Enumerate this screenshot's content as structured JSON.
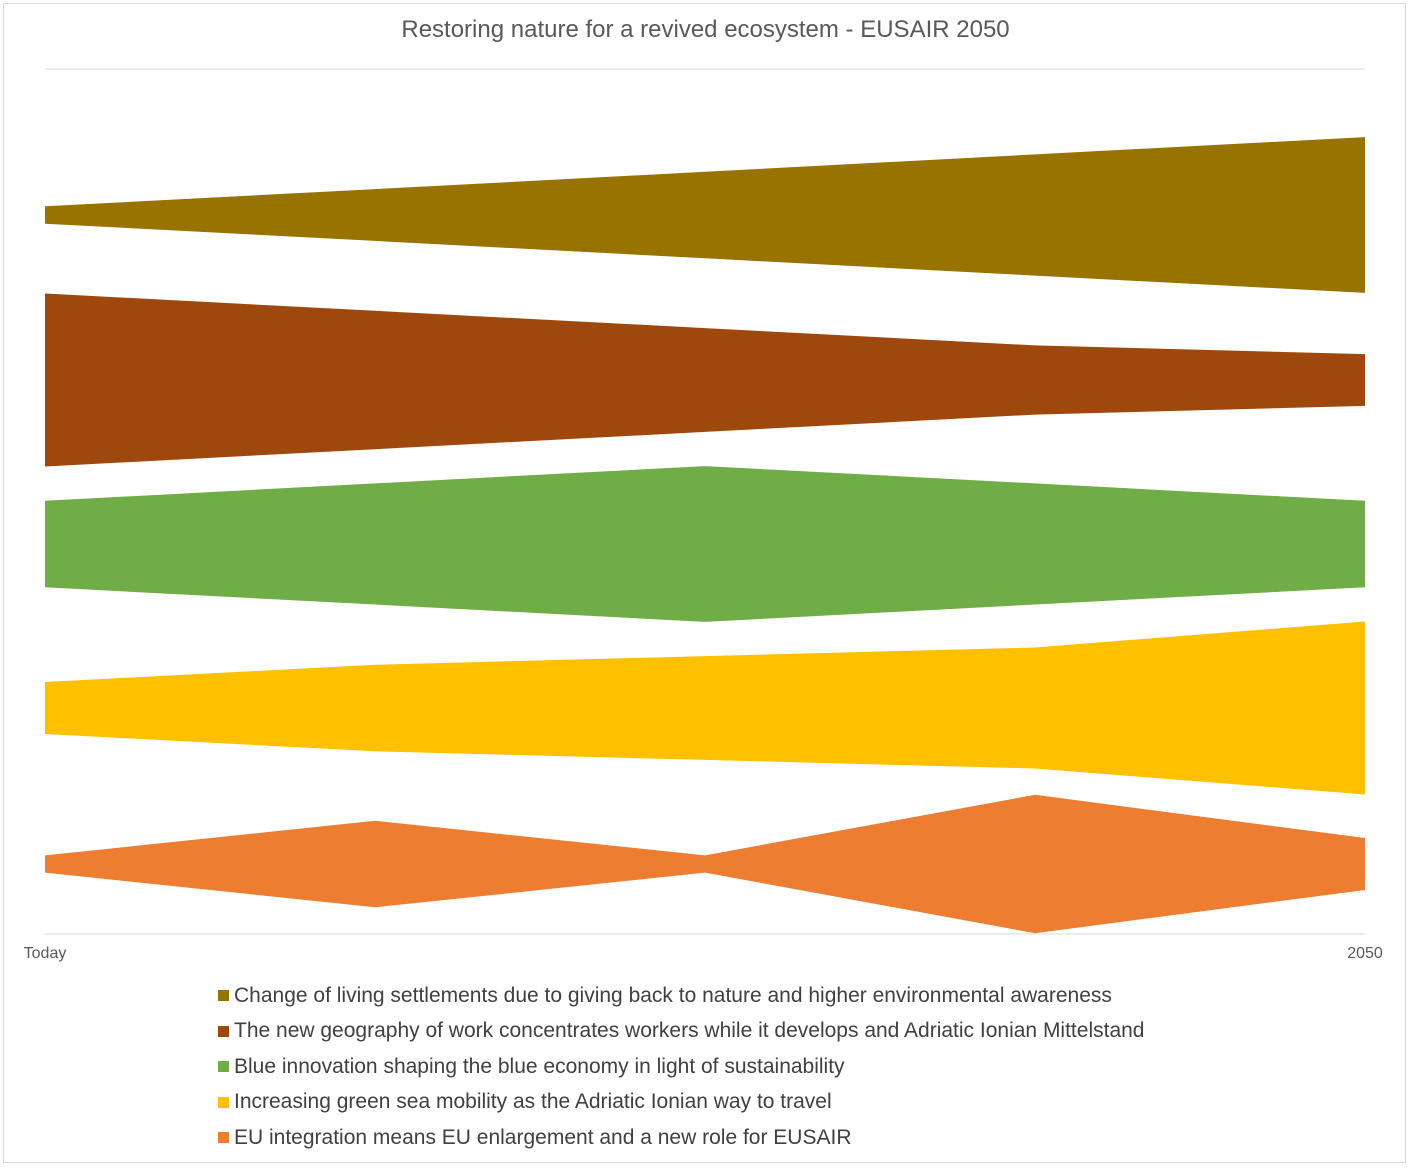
{
  "chart_data": {
    "type": "area",
    "title": "Restoring nature for a revived ecosystem - EUSAIR 2050",
    "x_tick_labels": [
      "Today",
      "",
      "",
      "",
      "2050"
    ],
    "stacked": true,
    "gridlines": false,
    "legend_position": "bottom",
    "series": [
      {
        "name": "Change of living settlements due to giving back to nature and higher environmental awareness",
        "color": "#997300",
        "widths": [
          1.0,
          3.0,
          5.0,
          7.0,
          9.0
        ]
      },
      {
        "name": "The new geography of work concentrates workers while it develops and Adriatic Ionian Mittelstand",
        "color": "#9E480E",
        "widths": [
          10.0,
          8.0,
          6.0,
          4.0,
          3.0
        ]
      },
      {
        "name": "Blue innovation shaping the blue economy in light of sustainability",
        "color": "#70AD47",
        "widths": [
          5.0,
          7.0,
          9.0,
          7.0,
          5.0
        ]
      },
      {
        "name": "Increasing green sea mobility as the Adriatic Ionian way to travel",
        "color": "#FFC000",
        "widths": [
          3.0,
          5.0,
          6.0,
          7.0,
          10.0
        ]
      },
      {
        "name": "EU integration means EU enlargement and a new role for EUSAIR",
        "color": "#ED7D31",
        "widths": [
          1.0,
          5.0,
          1.0,
          8.0,
          3.0
        ]
      }
    ]
  },
  "colors": {
    "axis": "#d9d9d9",
    "text": "#595959",
    "legend_text": "#404040"
  }
}
